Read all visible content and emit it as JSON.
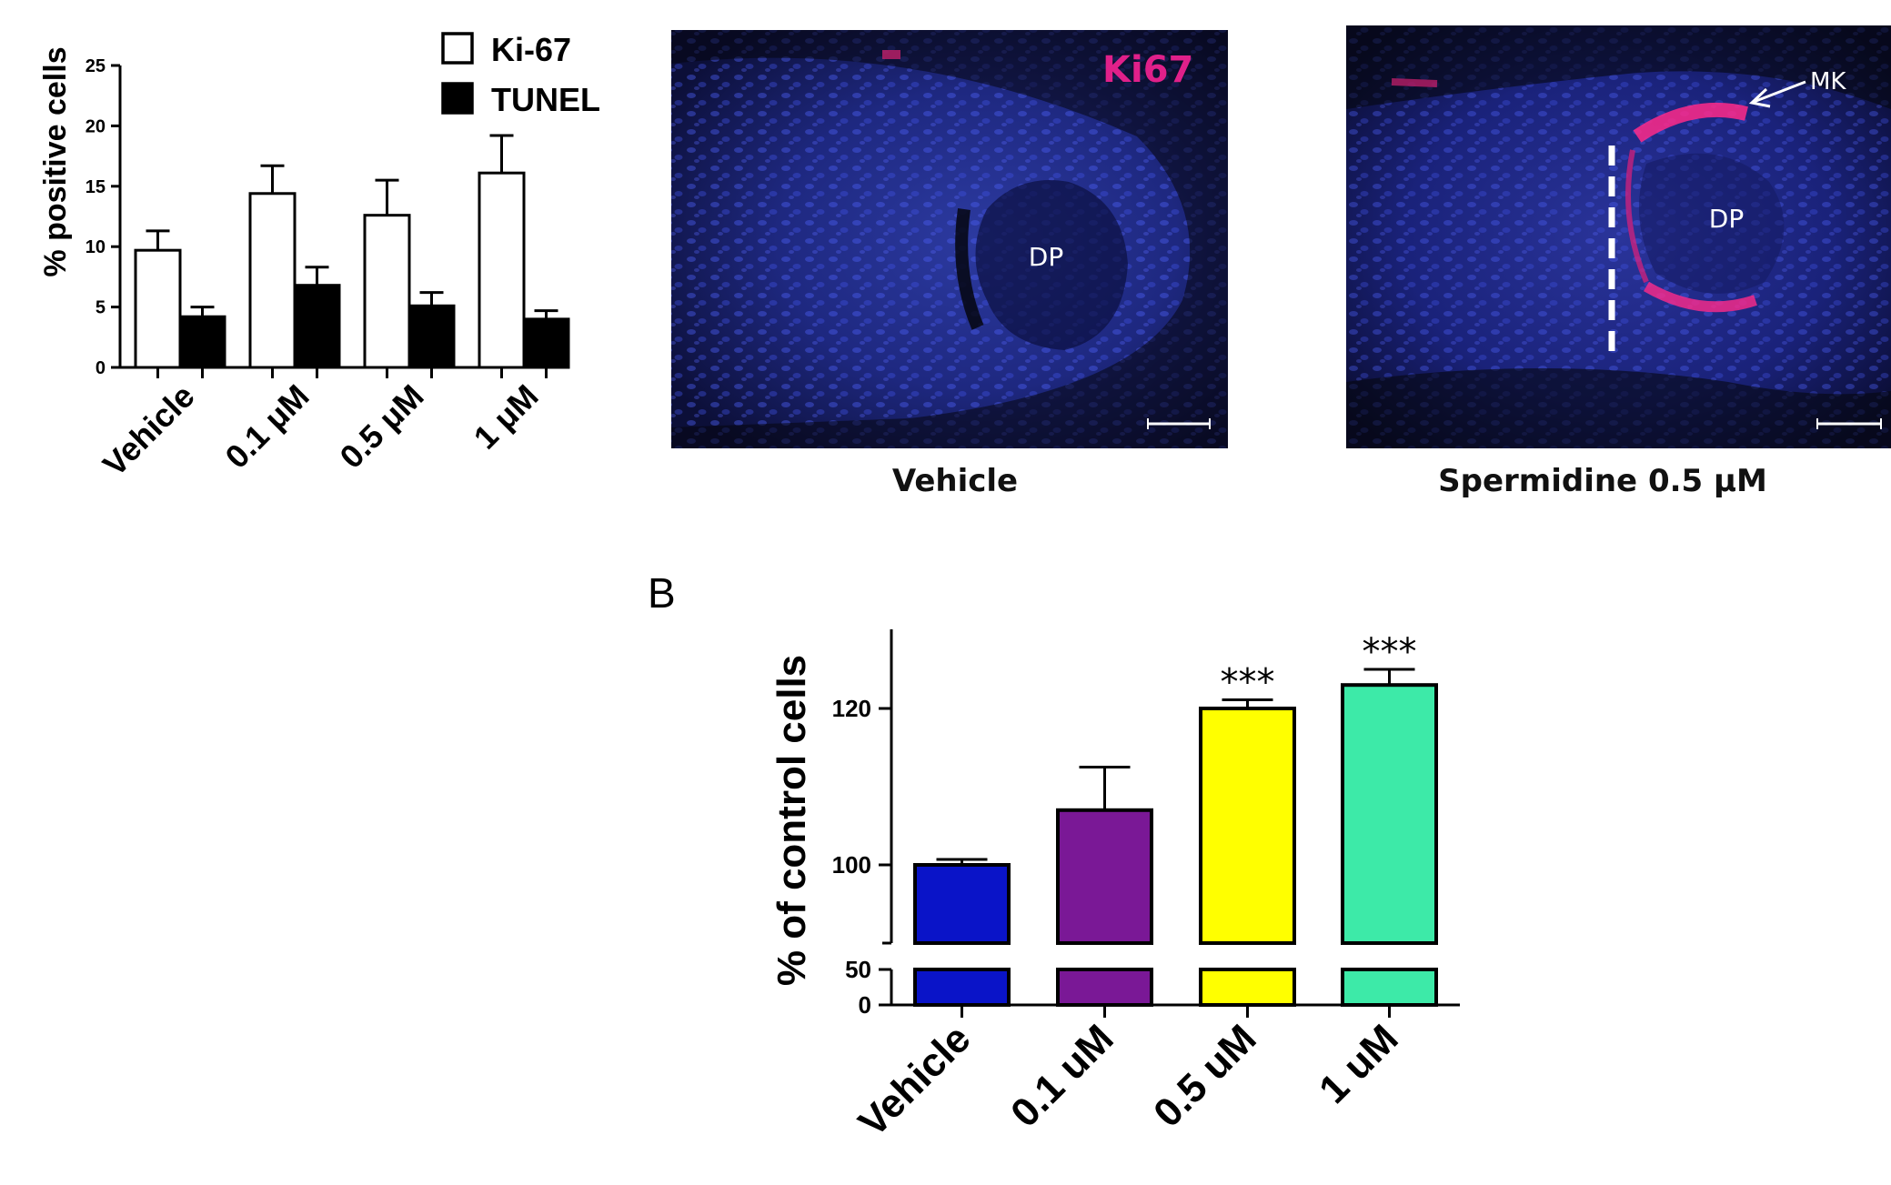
{
  "chart_data": [
    {
      "id": "chartA",
      "type": "bar",
      "categories": [
        "Vehicle",
        "0.1 μM",
        "0.5 μM",
        "1 μM"
      ],
      "series": [
        {
          "name": "Ki-67",
          "color": "#ffffff",
          "values": [
            9.7,
            14.4,
            12.6,
            16.1
          ],
          "errors": [
            1.6,
            2.3,
            2.9,
            3.1
          ]
        },
        {
          "name": "TUNEL",
          "color": "#000000",
          "values": [
            4.2,
            6.8,
            5.1,
            4.0
          ],
          "errors": [
            0.8,
            1.5,
            1.1,
            0.7
          ]
        }
      ],
      "xlabel": "",
      "ylabel": "% positive cells",
      "ylim": [
        0,
        25
      ],
      "yticks": [
        "0",
        "5",
        "10",
        "15",
        "20",
        "25"
      ],
      "legend_position": "top-right",
      "grid": false
    },
    {
      "id": "chartB",
      "type": "bar",
      "panel_label": "B",
      "categories": [
        "Vehicle",
        "0.1 uM",
        "0.5 uM",
        "1 uM"
      ],
      "values": [
        100,
        107,
        120,
        123
      ],
      "errors": [
        0.7,
        5.5,
        1.1,
        2.0
      ],
      "colors": [
        "#0a14c8",
        "#7a1896",
        "#ffff00",
        "#3deaa8"
      ],
      "annotations": [
        "",
        "",
        "***",
        "***"
      ],
      "xlabel": "",
      "ylabel": "% of control cells",
      "ylim": [
        90,
        130
      ],
      "yticks": [
        "100",
        "120"
      ],
      "broken_axis_lower": [
        0,
        50
      ],
      "lower_yticks": [
        "0",
        "50"
      ],
      "grid": false
    }
  ],
  "micrographs": [
    {
      "caption": "Vehicle",
      "stain_label": "Ki67",
      "region_label": "DP",
      "stain_color": "#e0208a"
    },
    {
      "caption": "Spermidine 0.5 μM",
      "region_label": "DP",
      "arrow_label": "MK"
    }
  ]
}
